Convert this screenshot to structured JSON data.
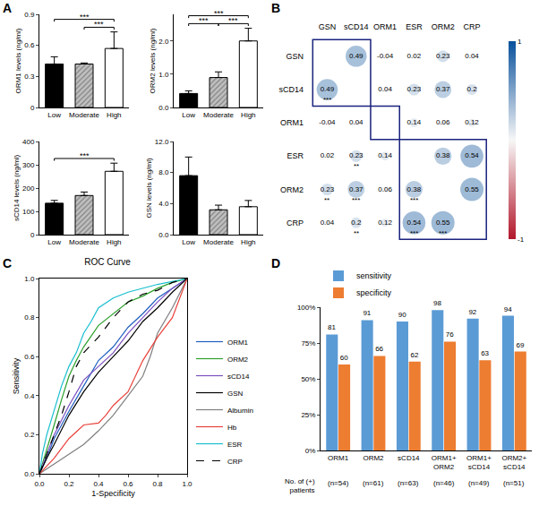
{
  "chart_data": [
    {
      "panel_label": "A",
      "type": "bar",
      "y_label": "ORM1 levels (ng/ml)",
      "categories": [
        "Low",
        "Moderate",
        "High"
      ],
      "values": [
        0.42,
        0.42,
        0.57
      ],
      "errors": [
        0.07,
        0.01,
        0.16
      ],
      "colors": [
        "#000000",
        "#c0c0c0",
        "#ffffff"
      ],
      "ylim": [
        0,
        0.9
      ],
      "yticks": [
        0,
        0.3,
        0.6,
        0.9
      ],
      "grid": false,
      "significance": [
        {
          "pair": [
            "Moderate",
            "High"
          ],
          "label": "***"
        },
        {
          "pair": [
            "Low",
            "High"
          ],
          "label": "***"
        }
      ]
    },
    {
      "type": "bar",
      "y_label": "ORM2 levels (ng/ml)",
      "categories": [
        "Low",
        "Moderate",
        "High"
      ],
      "values": [
        0.42,
        0.9,
        2.0
      ],
      "errors": [
        0.08,
        0.17,
        0.38
      ],
      "colors": [
        "#000000",
        "#c0c0c0",
        "#ffffff"
      ],
      "ylim": [
        0,
        2.8
      ],
      "yticks": [
        {
          "value": 0,
          "label": "0.0"
        },
        {
          "value": 1,
          "label": "1.0"
        },
        {
          "value": 2,
          "label": "2.0"
        }
      ],
      "grid": false,
      "significance": [
        {
          "pair": [
            "Low",
            "Moderate"
          ],
          "label": "***"
        },
        {
          "pair": [
            "Moderate",
            "High"
          ],
          "label": "***"
        },
        {
          "pair": [
            "Low",
            "High"
          ],
          "label": "***"
        }
      ]
    },
    {
      "type": "bar",
      "y_label": "sCD14 levels (ng/ml)",
      "categories": [
        "Low",
        "Moderate",
        "High"
      ],
      "values": [
        135,
        168,
        272
      ],
      "errors": [
        12,
        15,
        35
      ],
      "colors": [
        "#000000",
        "#c0c0c0",
        "#ffffff"
      ],
      "ylim": [
        0,
        400
      ],
      "yticks": [
        0,
        100,
        200,
        300,
        400
      ],
      "grid": false,
      "significance": [
        {
          "pair": [
            "Low",
            "High"
          ],
          "label": "***"
        }
      ]
    },
    {
      "type": "bar",
      "y_label": "GSN levels (ng/ml)",
      "categories": [
        "Low",
        "Moderate",
        "High"
      ],
      "values": [
        7.6,
        3.2,
        3.6
      ],
      "errors": [
        2.4,
        0.6,
        0.8
      ],
      "colors": [
        "#000000",
        "#c0c0c0",
        "#ffffff"
      ],
      "ylim": [
        0,
        12
      ],
      "yticks": [
        {
          "value": 0,
          "label": "0.0"
        },
        {
          "value": 4,
          "label": "4.0"
        },
        {
          "value": 8,
          "label": "8.0"
        },
        {
          "value": 12,
          "label": "12.0"
        }
      ],
      "grid": false,
      "significance": []
    },
    {
      "panel_label": "B",
      "type": "correlation",
      "categories": [
        "GSN",
        "sCD14",
        "ORM1",
        "ESR",
        "ORM2",
        "CRP"
      ],
      "matrix": [
        [
          null,
          0.49,
          -0.04,
          0.02,
          0.23,
          0.04
        ],
        [
          0.49,
          null,
          0.04,
          0.23,
          0.37,
          0.2
        ],
        [
          -0.04,
          0.04,
          null,
          0.14,
          0.06,
          0.12
        ],
        [
          0.02,
          0.23,
          0.14,
          null,
          0.38,
          0.54
        ],
        [
          0.23,
          0.37,
          0.06,
          0.38,
          null,
          0.55
        ],
        [
          0.04,
          0.2,
          0.12,
          0.54,
          0.55,
          null
        ]
      ],
      "stars": [
        [
          null,
          null,
          null,
          null,
          null,
          null
        ],
        [
          "***",
          null,
          null,
          null,
          null,
          null
        ],
        [
          null,
          null,
          null,
          null,
          null,
          null
        ],
        [
          null,
          "**",
          null,
          null,
          null,
          null
        ],
        [
          "**",
          "***",
          null,
          "***",
          null,
          null
        ],
        [
          null,
          "**",
          null,
          "***",
          "***",
          null
        ]
      ],
      "groups": [
        [
          "GSN",
          "sCD14"
        ],
        [
          "ORM1"
        ],
        [
          "ESR",
          "ORM2",
          "CRP"
        ]
      ],
      "colorbar": {
        "range": [
          -1,
          1
        ],
        "ticks": [
          -1,
          1
        ]
      }
    },
    {
      "panel_label": "C",
      "type": "line",
      "title": "ROC Curve",
      "x_label": "1-Specificity",
      "y_label": "Sensitivity",
      "xlim": [
        0,
        1
      ],
      "ylim": [
        0,
        1
      ],
      "xticks": [
        {
          "value": 0,
          "label": "0.0"
        },
        0.2,
        0.4,
        0.6,
        0.8,
        {
          "value": 1,
          "label": "1.0"
        }
      ],
      "yticks": [
        {
          "value": 0,
          "label": "0.0"
        },
        0.2,
        0.4,
        0.6,
        0.8,
        {
          "value": 1,
          "label": "1.0"
        }
      ],
      "grid": false,
      "legend": "right",
      "series": [
        {
          "name": "ORM1",
          "color": "#1f5fbf",
          "x": [
            0,
            0.05,
            0.1,
            0.2,
            0.3,
            0.4,
            0.5,
            0.6,
            0.7,
            0.8,
            0.9,
            1
          ],
          "values": [
            0,
            0.08,
            0.18,
            0.32,
            0.45,
            0.58,
            0.65,
            0.75,
            0.82,
            0.9,
            0.95,
            1
          ]
        },
        {
          "name": "ORM2",
          "color": "#2ca02c",
          "x": [
            0,
            0.05,
            0.1,
            0.15,
            0.2,
            0.25,
            0.3,
            0.4,
            0.5,
            0.6,
            0.7,
            0.8,
            0.9,
            1
          ],
          "values": [
            0,
            0.12,
            0.25,
            0.38,
            0.5,
            0.58,
            0.65,
            0.76,
            0.82,
            0.88,
            0.91,
            0.95,
            0.98,
            1
          ]
        },
        {
          "name": "sCD14",
          "color": "#7b4fbf",
          "x": [
            0,
            0.05,
            0.1,
            0.2,
            0.3,
            0.4,
            0.5,
            0.6,
            0.7,
            0.8,
            0.9,
            1
          ],
          "values": [
            0,
            0.1,
            0.2,
            0.35,
            0.48,
            0.55,
            0.62,
            0.72,
            0.8,
            0.88,
            0.95,
            1
          ]
        },
        {
          "name": "GSN",
          "color": "#000000",
          "x": [
            0,
            0.05,
            0.1,
            0.2,
            0.3,
            0.4,
            0.5,
            0.6,
            0.7,
            0.8,
            0.9,
            1
          ],
          "values": [
            0,
            0.08,
            0.15,
            0.3,
            0.42,
            0.52,
            0.6,
            0.68,
            0.78,
            0.85,
            0.93,
            1
          ]
        },
        {
          "name": "Albumin",
          "color": "#7f7f7f",
          "x": [
            0,
            0.1,
            0.2,
            0.3,
            0.4,
            0.5,
            0.6,
            0.7,
            0.75,
            0.8,
            0.9,
            1
          ],
          "values": [
            0,
            0.05,
            0.1,
            0.15,
            0.22,
            0.3,
            0.4,
            0.5,
            0.6,
            0.72,
            0.85,
            1
          ]
        },
        {
          "name": "Hb",
          "color": "#e8403a",
          "x": [
            0,
            0.1,
            0.2,
            0.3,
            0.4,
            0.45,
            0.5,
            0.6,
            0.7,
            0.8,
            0.9,
            1
          ],
          "values": [
            0,
            0.08,
            0.18,
            0.25,
            0.26,
            0.3,
            0.35,
            0.42,
            0.58,
            0.7,
            0.8,
            1
          ]
        },
        {
          "name": "ESR",
          "color": "#17becf",
          "x": [
            0,
            0.02,
            0.05,
            0.1,
            0.15,
            0.2,
            0.25,
            0.3,
            0.35,
            0.4,
            0.5,
            0.6,
            0.7,
            0.8,
            1
          ],
          "values": [
            0,
            0.1,
            0.2,
            0.32,
            0.45,
            0.55,
            0.62,
            0.72,
            0.78,
            0.85,
            0.9,
            0.93,
            0.95,
            0.97,
            1
          ]
        },
        {
          "name": "CRP",
          "color": "#000000",
          "line_style": "dashed",
          "x": [
            0,
            0.05,
            0.1,
            0.15,
            0.2,
            0.25,
            0.3,
            0.4,
            0.5,
            0.6,
            0.7,
            0.8,
            0.9,
            1
          ],
          "values": [
            0,
            0.1,
            0.2,
            0.3,
            0.42,
            0.55,
            0.62,
            0.7,
            0.8,
            0.88,
            0.92,
            0.94,
            0.98,
            1
          ]
        }
      ]
    },
    {
      "panel_label": "D",
      "type": "bar",
      "categories": [
        "ORM1",
        "ORM2",
        "sCD14",
        "ORM1+\nORM2",
        "ORM1+\nsCD14",
        "ORM2+\nsCD14"
      ],
      "series": [
        {
          "name": "sensitivity",
          "color": "#5b9bd5",
          "values": [
            81,
            91,
            90,
            98,
            92,
            94
          ]
        },
        {
          "name": "specificity",
          "color": "#ed7d31",
          "values": [
            60,
            66,
            62,
            76,
            63,
            69
          ]
        }
      ],
      "ylim": [
        0,
        100
      ],
      "yticks": [
        {
          "value": 0,
          "label": "0%"
        },
        {
          "value": 25,
          "label": "25%"
        },
        {
          "value": 50,
          "label": "50%"
        },
        {
          "value": 75,
          "label": "75%"
        },
        {
          "value": 100,
          "label": "100%"
        }
      ],
      "data_labels": true,
      "legend": "upper left",
      "grid": false,
      "patient_counts_label": "No. of (+)\npatients",
      "patient_counts": [
        "(n=54)",
        "(n=61)",
        "(n=63)",
        "(n=46)",
        "(n=49)",
        "(n=51)"
      ]
    }
  ]
}
